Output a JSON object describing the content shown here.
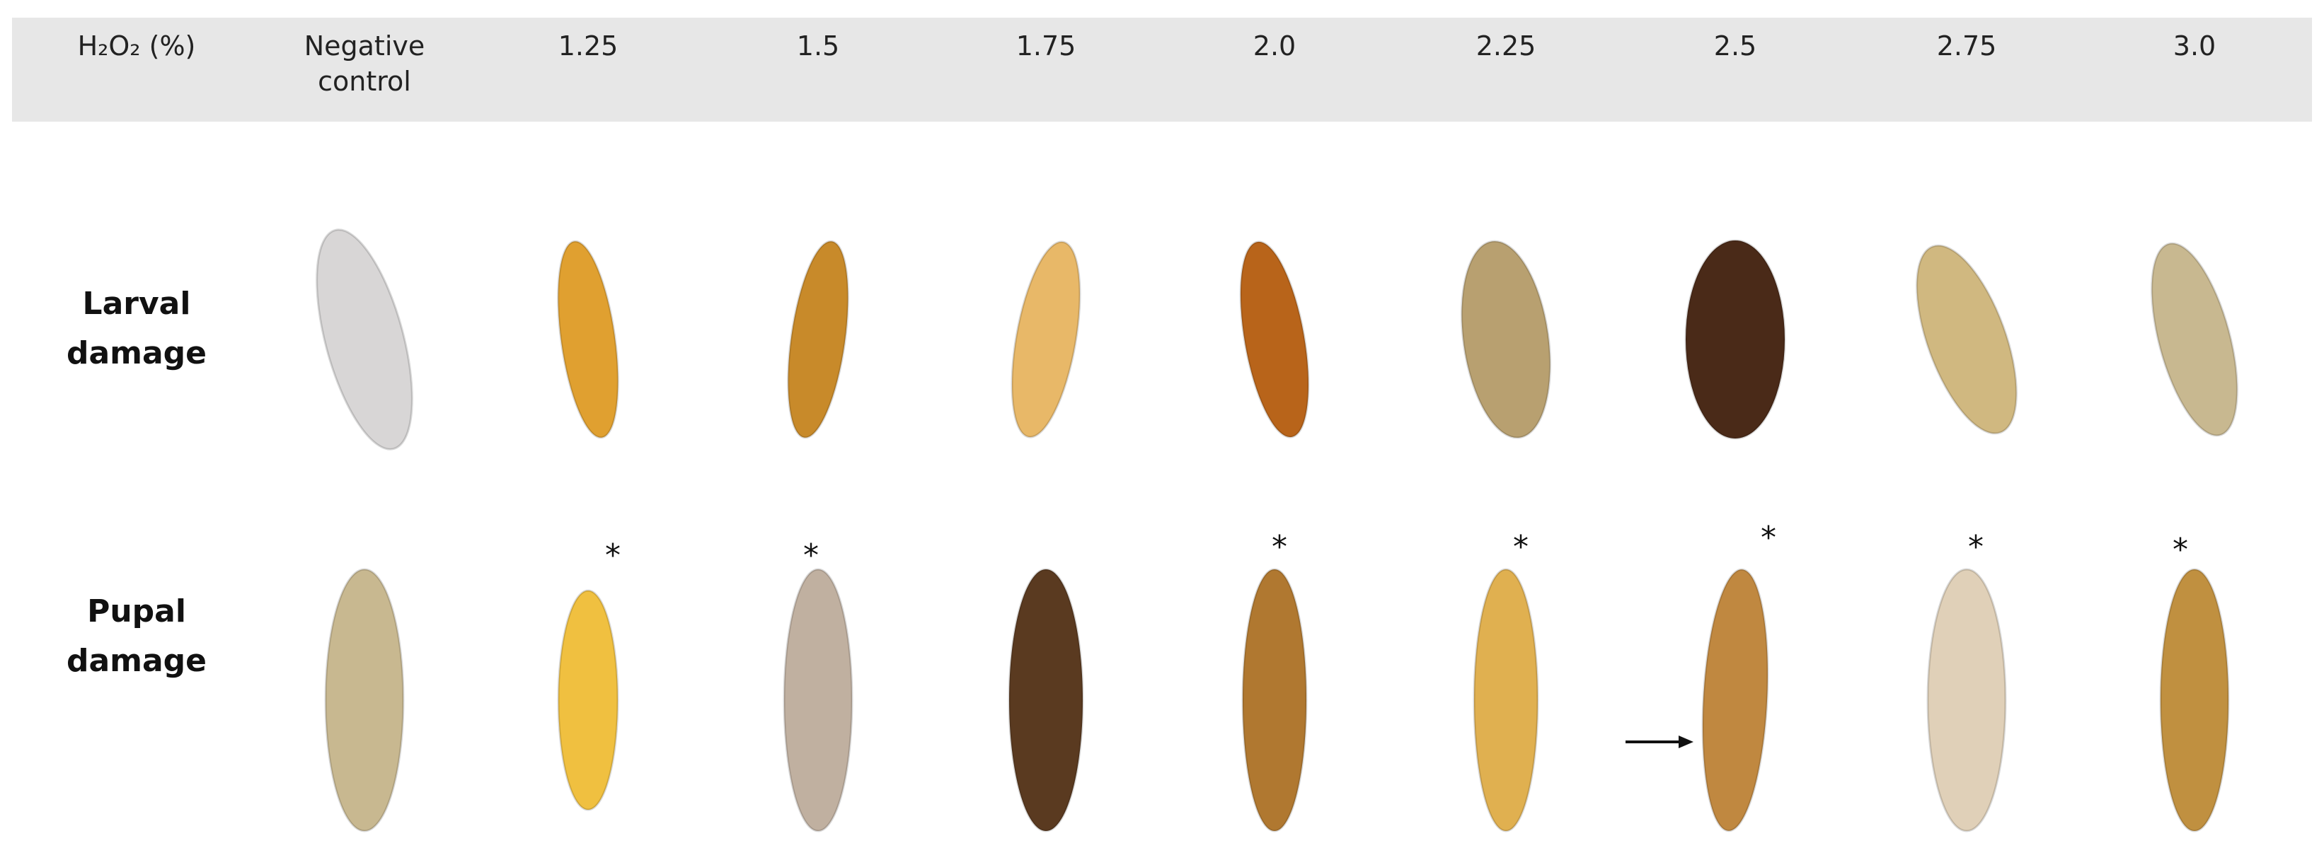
{
  "header": {
    "row_label": "H₂O₂ (%)",
    "columns": [
      "Negative control",
      "1.25",
      "1.5",
      "1.75",
      "2.0",
      "2.25",
      "2.5",
      "2.75",
      "3.0"
    ]
  },
  "rows": [
    {
      "label": "Larval damage"
    },
    {
      "label": "Pupal damage",
      "asterisks": [
        "*",
        "*",
        "*",
        "*",
        "*",
        "*",
        "*"
      ]
    }
  ]
}
